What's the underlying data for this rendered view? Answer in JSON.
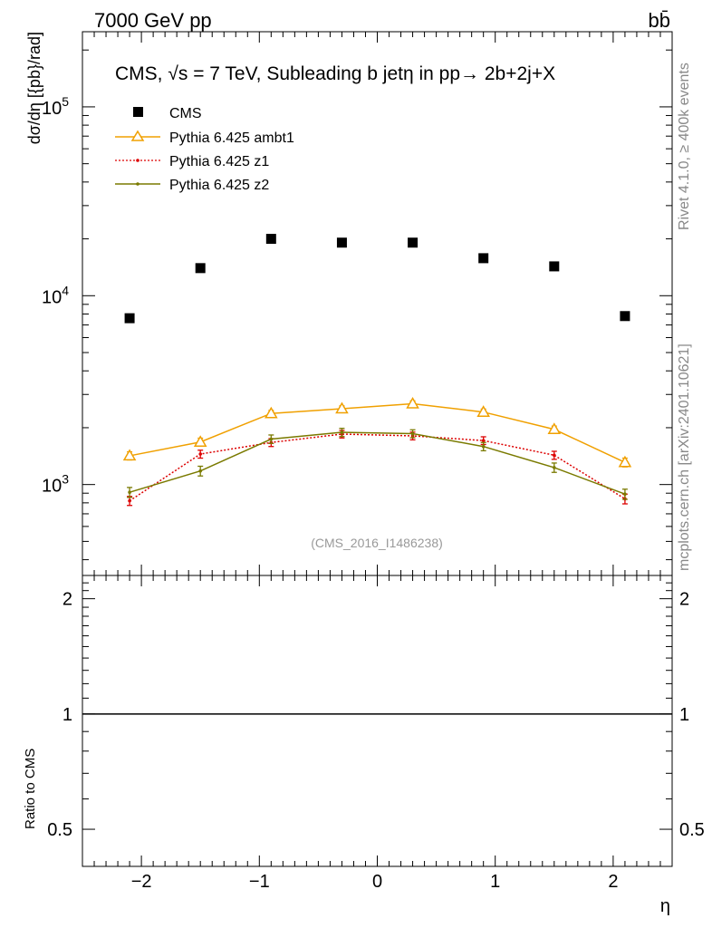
{
  "header": {
    "left": "7000 GeV pp",
    "right": "bb̄"
  },
  "side_labels": {
    "rivet": "Rivet 4.1.0, ≥ 400k events",
    "site": "mcplots.cern.ch [arXiv:2401.10621]"
  },
  "chart_data": {
    "type": "scatter",
    "title": "CMS, √s = 7 TeV, Subleading b jetη in pp→  2b+2j+X",
    "analysis_id": "(CMS_2016_I1486238)",
    "xlabel": "η",
    "ylabel": "dσ/dη [{pb}/rad]",
    "ratio_ylabel": "Ratio to CMS",
    "xlim": [
      -2.5,
      2.5
    ],
    "ylim": [
      330,
      250000
    ],
    "yscale": "log",
    "ratio_ylim": [
      0.4,
      2.3
    ],
    "x_ticks": [
      -2,
      -1,
      0,
      1,
      2
    ],
    "x_tick_labels": [
      "−2",
      "−1",
      "0",
      "1",
      "2"
    ],
    "y_ticks": [
      1000,
      10000,
      100000
    ],
    "y_tick_labels": [
      {
        "base": "10",
        "exp": "3"
      },
      {
        "base": "10",
        "exp": "4"
      },
      {
        "base": "10",
        "exp": "5"
      }
    ],
    "ratio_ticks": [
      0.5,
      1,
      2
    ],
    "ratio_tick_labels": [
      "0.5",
      "1",
      "2"
    ],
    "x": [
      -2.1,
      -1.5,
      -0.9,
      -0.3,
      0.3,
      0.9,
      1.5,
      2.1
    ],
    "series": [
      {
        "name": "CMS",
        "marker": "square",
        "color": "#000000",
        "values": [
          7600,
          14000,
          20000,
          19100,
          19100,
          15800,
          14300,
          7800
        ]
      },
      {
        "name": "Pythia 6.425 ambt1",
        "marker": "triangle",
        "line": "solid",
        "color": "#f0a000",
        "values": [
          1420,
          1680,
          2380,
          2520,
          2680,
          2420,
          1960,
          1310
        ],
        "errors": [
          70,
          80,
          90,
          90,
          95,
          90,
          80,
          70
        ]
      },
      {
        "name": "Pythia 6.425 z1",
        "marker": "dot",
        "line": "dotted",
        "color": "#dd0000",
        "values": [
          820,
          1450,
          1670,
          1850,
          1810,
          1710,
          1430,
          840
        ],
        "errors": [
          45,
          70,
          80,
          85,
          85,
          80,
          70,
          50
        ]
      },
      {
        "name": "Pythia 6.425 z2",
        "marker": "dot",
        "line": "solid",
        "color": "#7a7a00",
        "values": [
          910,
          1180,
          1740,
          1890,
          1860,
          1590,
          1230,
          890
        ],
        "errors": [
          55,
          70,
          90,
          95,
          90,
          80,
          70,
          55
        ]
      }
    ]
  }
}
